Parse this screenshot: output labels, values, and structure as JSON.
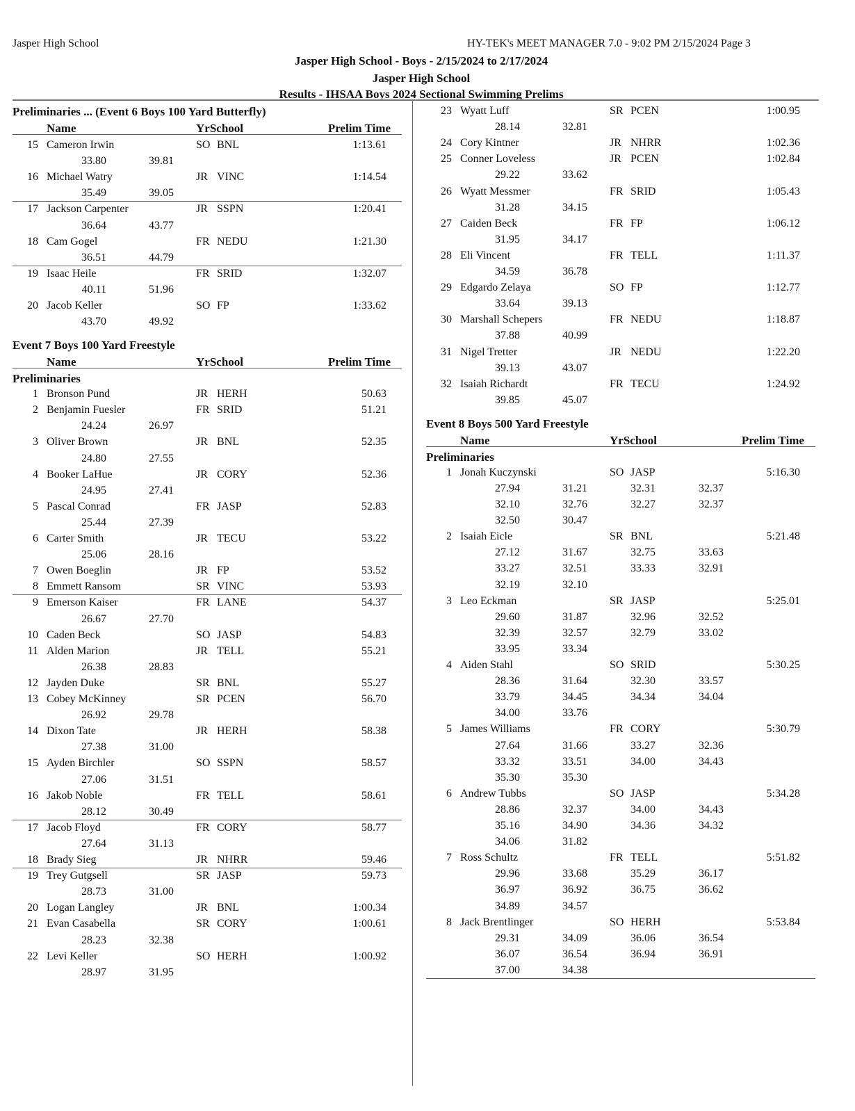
{
  "header": {
    "left": "Jasper High School",
    "right": "HY-TEK's MEET MANAGER 7.0 - 9:02 PM  2/15/2024  Page 3",
    "title1": "Jasper High School - Boys - 2/15/2024 to 2/17/2024",
    "title2": "Jasper High School",
    "title3": "Results - IHSAA Boys 2024 Sectional Swimming Prelims"
  },
  "column_headers": {
    "name": "Name",
    "yr_school": "YrSchool",
    "time": "Prelim Time"
  },
  "columns": [
    {
      "blocks": [
        {
          "title": "Preliminaries ...  (Event 6  Boys 100 Yard Butterfly)",
          "show_headers": true,
          "subheading": "",
          "entries": [
            {
              "place": "15",
              "name": "Cameron Irwin",
              "yr": "SO",
              "school": "BNL",
              "time": "1:13.61",
              "splits": [
                [
                  "33.80",
                  "39.81"
                ]
              ]
            },
            {
              "place": "16",
              "name": "Michael Watry",
              "yr": "JR",
              "school": "VINC",
              "time": "1:14.54",
              "splits": [
                [
                  "35.49",
                  "39.05"
                ]
              ],
              "divider_after": true
            },
            {
              "place": "17",
              "name": "Jackson Carpenter",
              "yr": "JR",
              "school": "SSPN",
              "time": "1:20.41",
              "splits": [
                [
                  "36.64",
                  "43.77"
                ]
              ]
            },
            {
              "place": "18",
              "name": "Cam Gogel",
              "yr": "FR",
              "school": "NEDU",
              "time": "1:21.30",
              "splits": [
                [
                  "36.51",
                  "44.79"
                ]
              ],
              "divider_after": true
            },
            {
              "place": "19",
              "name": "Isaac Heile",
              "yr": "FR",
              "school": "SRID",
              "time": "1:32.07",
              "splits": [
                [
                  "40.11",
                  "51.96"
                ]
              ]
            },
            {
              "place": "20",
              "name": "Jacob Keller",
              "yr": "SO",
              "school": "FP",
              "time": "1:33.62",
              "splits": [
                [
                  "43.70",
                  "49.92"
                ]
              ]
            }
          ]
        },
        {
          "title": "Event 7  Boys 100 Yard Freestyle",
          "show_headers": true,
          "subheading": "Preliminaries",
          "entries": [
            {
              "place": "1",
              "name": "Bronson Pund",
              "yr": "JR",
              "school": "HERH",
              "time": "50.63",
              "splits": []
            },
            {
              "place": "2",
              "name": "Benjamin Fuesler",
              "yr": "FR",
              "school": "SRID",
              "time": "51.21",
              "splits": [
                [
                  "24.24",
                  "26.97"
                ]
              ]
            },
            {
              "place": "3",
              "name": "Oliver Brown",
              "yr": "JR",
              "school": "BNL",
              "time": "52.35",
              "splits": [
                [
                  "24.80",
                  "27.55"
                ]
              ]
            },
            {
              "place": "4",
              "name": "Booker LaHue",
              "yr": "JR",
              "school": "CORY",
              "time": "52.36",
              "splits": [
                [
                  "24.95",
                  "27.41"
                ]
              ]
            },
            {
              "place": "5",
              "name": "Pascal Conrad",
              "yr": "FR",
              "school": "JASP",
              "time": "52.83",
              "splits": [
                [
                  "25.44",
                  "27.39"
                ]
              ]
            },
            {
              "place": "6",
              "name": "Carter Smith",
              "yr": "JR",
              "school": "TECU",
              "time": "53.22",
              "splits": [
                [
                  "25.06",
                  "28.16"
                ]
              ]
            },
            {
              "place": "7",
              "name": "Owen Boeglin",
              "yr": "JR",
              "school": "FP",
              "time": "53.52",
              "splits": []
            },
            {
              "place": "8",
              "name": "Emmett Ransom",
              "yr": "SR",
              "school": "VINC",
              "time": "53.93",
              "splits": [],
              "divider_after": true
            },
            {
              "place": "9",
              "name": "Emerson Kaiser",
              "yr": "FR",
              "school": "LANE",
              "time": "54.37",
              "splits": [
                [
                  "26.67",
                  "27.70"
                ]
              ]
            },
            {
              "place": "10",
              "name": "Caden Beck",
              "yr": "SO",
              "school": "JASP",
              "time": "54.83",
              "splits": []
            },
            {
              "place": "11",
              "name": "Alden Marion",
              "yr": "JR",
              "school": "TELL",
              "time": "55.21",
              "splits": [
                [
                  "26.38",
                  "28.83"
                ]
              ]
            },
            {
              "place": "12",
              "name": "Jayden Duke",
              "yr": "SR",
              "school": "BNL",
              "time": "55.27",
              "splits": []
            },
            {
              "place": "13",
              "name": "Cobey McKinney",
              "yr": "SR",
              "school": "PCEN",
              "time": "56.70",
              "splits": [
                [
                  "26.92",
                  "29.78"
                ]
              ]
            },
            {
              "place": "14",
              "name": "Dixon Tate",
              "yr": "JR",
              "school": "HERH",
              "time": "58.38",
              "splits": [
                [
                  "27.38",
                  "31.00"
                ]
              ]
            },
            {
              "place": "15",
              "name": "Ayden Birchler",
              "yr": "SO",
              "school": "SSPN",
              "time": "58.57",
              "splits": [
                [
                  "27.06",
                  "31.51"
                ]
              ]
            },
            {
              "place": "16",
              "name": "Jakob Noble",
              "yr": "FR",
              "school": "TELL",
              "time": "58.61",
              "splits": [
                [
                  "28.12",
                  "30.49"
                ]
              ],
              "divider_after": true
            },
            {
              "place": "17",
              "name": "Jacob Floyd",
              "yr": "FR",
              "school": "CORY",
              "time": "58.77",
              "splits": [
                [
                  "27.64",
                  "31.13"
                ]
              ]
            },
            {
              "place": "18",
              "name": "Brady Sieg",
              "yr": "JR",
              "school": "NHRR",
              "time": "59.46",
              "splits": [],
              "divider_after": true
            },
            {
              "place": "19",
              "name": "Trey Gutgsell",
              "yr": "SR",
              "school": "JASP",
              "time": "59.73",
              "splits": [
                [
                  "28.73",
                  "31.00"
                ]
              ]
            },
            {
              "place": "20",
              "name": "Logan Langley",
              "yr": "JR",
              "school": "BNL",
              "time": "1:00.34",
              "splits": []
            },
            {
              "place": "21",
              "name": "Evan Casabella",
              "yr": "SR",
              "school": "CORY",
              "time": "1:00.61",
              "splits": [
                [
                  "28.23",
                  "32.38"
                ]
              ]
            },
            {
              "place": "22",
              "name": "Levi Keller",
              "yr": "SO",
              "school": "HERH",
              "time": "1:00.92",
              "splits": [
                [
                  "28.97",
                  "31.95"
                ]
              ]
            }
          ]
        }
      ]
    },
    {
      "blocks": [
        {
          "title": "",
          "show_headers": false,
          "subheading": "",
          "entries": [
            {
              "place": "23",
              "name": "Wyatt Luff",
              "yr": "SR",
              "school": "PCEN",
              "time": "1:00.95",
              "splits": [
                [
                  "28.14",
                  "32.81"
                ]
              ]
            },
            {
              "place": "24",
              "name": "Cory Kintner",
              "yr": "JR",
              "school": "NHRR",
              "time": "1:02.36",
              "splits": []
            },
            {
              "place": "25",
              "name": "Conner Loveless",
              "yr": "JR",
              "school": "PCEN",
              "time": "1:02.84",
              "splits": [
                [
                  "29.22",
                  "33.62"
                ]
              ]
            },
            {
              "place": "26",
              "name": "Wyatt Messmer",
              "yr": "FR",
              "school": "SRID",
              "time": "1:05.43",
              "splits": [
                [
                  "31.28",
                  "34.15"
                ]
              ]
            },
            {
              "place": "27",
              "name": "Caiden Beck",
              "yr": "FR",
              "school": "FP",
              "time": "1:06.12",
              "splits": [
                [
                  "31.95",
                  "34.17"
                ]
              ]
            },
            {
              "place": "28",
              "name": "Eli Vincent",
              "yr": "FR",
              "school": "TELL",
              "time": "1:11.37",
              "splits": [
                [
                  "34.59",
                  "36.78"
                ]
              ]
            },
            {
              "place": "29",
              "name": "Edgardo Zelaya",
              "yr": "SO",
              "school": "FP",
              "time": "1:12.77",
              "splits": [
                [
                  "33.64",
                  "39.13"
                ]
              ]
            },
            {
              "place": "30",
              "name": "Marshall Schepers",
              "yr": "FR",
              "school": "NEDU",
              "time": "1:18.87",
              "splits": [
                [
                  "37.88",
                  "40.99"
                ]
              ]
            },
            {
              "place": "31",
              "name": "Nigel Tretter",
              "yr": "JR",
              "school": "NEDU",
              "time": "1:22.20",
              "splits": [
                [
                  "39.13",
                  "43.07"
                ]
              ]
            },
            {
              "place": "32",
              "name": "Isaiah Richardt",
              "yr": "FR",
              "school": "TECU",
              "time": "1:24.92",
              "splits": [
                [
                  "39.85",
                  "45.07"
                ]
              ]
            }
          ]
        },
        {
          "title": "Event 8  Boys 500 Yard Freestyle",
          "show_headers": true,
          "subheading": "Preliminaries",
          "entries": [
            {
              "place": "1",
              "name": "Jonah Kuczynski",
              "yr": "SO",
              "school": "JASP",
              "time": "5:16.30",
              "splits": [
                [
                  "27.94",
                  "31.21",
                  "32.31",
                  "32.37"
                ],
                [
                  "32.10",
                  "32.76",
                  "32.27",
                  "32.37"
                ],
                [
                  "32.50",
                  "30.47"
                ]
              ]
            },
            {
              "place": "2",
              "name": "Isaiah Eicle",
              "yr": "SR",
              "school": "BNL",
              "time": "5:21.48",
              "splits": [
                [
                  "27.12",
                  "31.67",
                  "32.75",
                  "33.63"
                ],
                [
                  "33.27",
                  "32.51",
                  "33.33",
                  "32.91"
                ],
                [
                  "32.19",
                  "32.10"
                ]
              ]
            },
            {
              "place": "3",
              "name": "Leo Eckman",
              "yr": "SR",
              "school": "JASP",
              "time": "5:25.01",
              "splits": [
                [
                  "29.60",
                  "31.87",
                  "32.96",
                  "32.52"
                ],
                [
                  "32.39",
                  "32.57",
                  "32.79",
                  "33.02"
                ],
                [
                  "33.95",
                  "33.34"
                ]
              ]
            },
            {
              "place": "4",
              "name": "Aiden Stahl",
              "yr": "SO",
              "school": "SRID",
              "time": "5:30.25",
              "splits": [
                [
                  "28.36",
                  "31.64",
                  "32.30",
                  "33.57"
                ],
                [
                  "33.79",
                  "34.45",
                  "34.34",
                  "34.04"
                ],
                [
                  "34.00",
                  "33.76"
                ]
              ]
            },
            {
              "place": "5",
              "name": "James Williams",
              "yr": "FR",
              "school": "CORY",
              "time": "5:30.79",
              "splits": [
                [
                  "27.64",
                  "31.66",
                  "33.27",
                  "32.36"
                ],
                [
                  "33.32",
                  "33.51",
                  "34.00",
                  "34.43"
                ],
                [
                  "35.30",
                  "35.30"
                ]
              ]
            },
            {
              "place": "6",
              "name": "Andrew Tubbs",
              "yr": "SO",
              "school": "JASP",
              "time": "5:34.28",
              "splits": [
                [
                  "28.86",
                  "32.37",
                  "34.00",
                  "34.43"
                ],
                [
                  "35.16",
                  "34.90",
                  "34.36",
                  "34.32"
                ],
                [
                  "34.06",
                  "31.82"
                ]
              ]
            },
            {
              "place": "7",
              "name": "Ross Schultz",
              "yr": "FR",
              "school": "TELL",
              "time": "5:51.82",
              "splits": [
                [
                  "29.96",
                  "33.68",
                  "35.29",
                  "36.17"
                ],
                [
                  "36.97",
                  "36.92",
                  "36.75",
                  "36.62"
                ],
                [
                  "34.89",
                  "34.57"
                ]
              ]
            },
            {
              "place": "8",
              "name": "Jack Brentlinger",
              "yr": "SO",
              "school": "HERH",
              "time": "5:53.84",
              "splits": [
                [
                  "29.31",
                  "34.09",
                  "36.06",
                  "36.54"
                ],
                [
                  "36.07",
                  "36.54",
                  "36.94",
                  "36.91"
                ],
                [
                  "37.00",
                  "34.38"
                ]
              ],
              "divider_after": true
            }
          ]
        }
      ]
    }
  ]
}
